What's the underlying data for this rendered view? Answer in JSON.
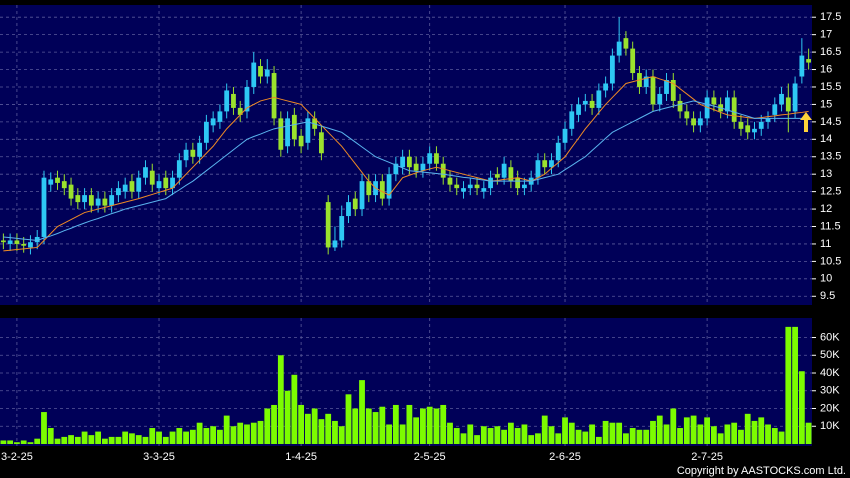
{
  "chart_data": [
    {
      "type": "candlestick",
      "categories": [
        null,
        null,
        "3-2-25",
        null,
        null,
        null,
        null,
        null,
        null,
        null,
        null,
        null,
        null,
        null,
        null,
        null,
        null,
        null,
        null,
        null,
        null,
        null,
        null,
        "3-3-25",
        null,
        null,
        null,
        null,
        null,
        null,
        null,
        null,
        null,
        null,
        null,
        null,
        null,
        null,
        null,
        null,
        null,
        null,
        null,
        null,
        "1-4-25",
        null,
        null,
        null,
        null,
        null,
        null,
        null,
        null,
        null,
        null,
        null,
        null,
        null,
        null,
        null,
        null,
        null,
        null,
        "2-5-25",
        null,
        null,
        null,
        null,
        null,
        null,
        null,
        null,
        null,
        null,
        null,
        null,
        null,
        null,
        null,
        null,
        null,
        null,
        null,
        "2-6-25",
        null,
        null,
        null,
        null,
        null,
        null,
        null,
        null,
        null,
        null,
        null,
        null,
        null,
        null,
        null,
        null,
        null,
        null,
        null,
        null,
        "2-7-25",
        null,
        null,
        null,
        null,
        null,
        null,
        null,
        null,
        null,
        null,
        null,
        null,
        null,
        null,
        null
      ],
      "open": [
        11.1,
        11.0,
        11.1,
        11.0,
        10.9,
        11.05,
        11.2,
        12.7,
        12.9,
        12.8,
        12.7,
        12.4,
        12.2,
        12.4,
        12.1,
        12.3,
        12.1,
        12.4,
        12.5,
        12.8,
        12.5,
        12.9,
        13.1,
        12.6,
        12.9,
        12.6,
        12.9,
        13.4,
        13.7,
        13.5,
        13.9,
        14.4,
        14.5,
        14.8,
        15.3,
        14.9,
        14.8,
        15.5,
        16.1,
        15.8,
        15.9,
        14.6,
        13.8,
        14.7,
        14.1,
        13.9,
        14.6,
        14.2,
        12.2,
        10.9,
        11.1,
        11.8,
        12.3,
        12.0,
        12.8,
        12.4,
        12.8,
        12.3,
        13.0,
        13.2,
        13.5,
        13.3,
        13.1,
        13.3,
        13.6,
        13.3,
        12.9,
        12.7,
        12.5,
        12.6,
        12.7,
        12.5,
        12.6,
        13.0,
        12.9,
        13.2,
        12.9,
        12.6,
        12.7,
        12.9,
        13.4,
        13.2,
        13.4,
        13.9,
        14.3,
        14.7,
        15.0,
        15.1,
        14.9,
        15.4,
        15.6,
        16.4,
        16.9,
        16.6,
        15.9,
        15.5,
        15.8,
        15.0,
        15.3,
        15.7,
        15.1,
        14.8,
        14.6,
        14.4,
        14.6,
        15.2,
        15.0,
        14.8,
        15.2,
        14.5,
        14.4,
        14.2,
        14.3,
        14.5,
        14.7,
        15.0,
        15.2,
        14.8,
        15.8,
        16.3
      ],
      "high": [
        11.3,
        11.3,
        11.3,
        11.2,
        11.25,
        11.4,
        13.1,
        13.05,
        13.1,
        13.0,
        12.9,
        12.6,
        12.6,
        12.6,
        12.5,
        12.5,
        12.6,
        12.8,
        12.9,
        13.0,
        13.1,
        13.4,
        13.3,
        13.0,
        13.1,
        13.1,
        13.6,
        13.9,
        13.9,
        14.1,
        14.7,
        14.8,
        15.0,
        15.6,
        15.5,
        15.1,
        15.7,
        16.5,
        16.3,
        16.3,
        16.1,
        14.8,
        14.8,
        14.9,
        14.3,
        14.8,
        14.8,
        14.4,
        12.4,
        11.5,
        12.1,
        12.4,
        12.5,
        13.0,
        13.0,
        13.0,
        13.0,
        13.2,
        13.5,
        13.7,
        13.7,
        13.5,
        13.5,
        13.8,
        13.8,
        13.5,
        13.1,
        12.9,
        12.8,
        12.9,
        12.9,
        12.8,
        13.1,
        13.2,
        13.5,
        13.4,
        13.1,
        12.9,
        13.1,
        13.6,
        13.6,
        13.6,
        14.1,
        14.5,
        15.0,
        15.2,
        15.3,
        15.3,
        15.6,
        15.8,
        16.6,
        17.5,
        17.1,
        16.8,
        16.1,
        16.0,
        16.0,
        15.5,
        15.9,
        15.9,
        15.3,
        15.0,
        14.8,
        14.8,
        15.4,
        15.4,
        15.2,
        15.4,
        15.4,
        14.7,
        14.6,
        14.5,
        14.7,
        14.8,
        15.2,
        15.5,
        15.6,
        15.8,
        16.9,
        16.6
      ],
      "low": [
        10.85,
        10.8,
        10.8,
        10.75,
        10.7,
        10.85,
        11.0,
        12.5,
        12.55,
        12.4,
        12.1,
        12.0,
        12.0,
        11.9,
        11.9,
        11.9,
        11.9,
        12.2,
        12.3,
        12.3,
        12.3,
        12.7,
        12.5,
        12.4,
        12.4,
        12.4,
        12.7,
        13.2,
        13.3,
        13.3,
        13.7,
        14.2,
        14.3,
        14.6,
        14.7,
        14.5,
        14.6,
        15.3,
        15.6,
        15.6,
        14.4,
        13.5,
        13.6,
        13.8,
        13.6,
        13.7,
        14.1,
        13.4,
        10.7,
        10.8,
        10.9,
        11.6,
        11.8,
        11.8,
        12.2,
        12.2,
        12.1,
        12.1,
        12.8,
        13.0,
        13.0,
        12.9,
        12.9,
        13.1,
        13.1,
        12.7,
        12.5,
        12.4,
        12.3,
        12.4,
        12.4,
        12.3,
        12.4,
        12.7,
        12.7,
        12.6,
        12.4,
        12.4,
        12.5,
        12.7,
        13.0,
        13.0,
        13.2,
        13.7,
        14.1,
        14.5,
        14.8,
        14.7,
        14.7,
        15.2,
        15.4,
        16.2,
        16.4,
        15.7,
        15.3,
        15.3,
        14.8,
        14.8,
        15.1,
        14.9,
        14.6,
        14.4,
        14.2,
        14.2,
        14.4,
        14.8,
        14.6,
        14.6,
        14.3,
        14.1,
        14.0,
        14.0,
        14.1,
        14.3,
        14.5,
        14.8,
        14.2,
        14.6,
        15.6,
        16.0
      ],
      "close": [
        11.05,
        11.1,
        11.0,
        10.95,
        11.05,
        11.2,
        12.9,
        12.85,
        12.75,
        12.6,
        12.3,
        12.2,
        12.4,
        12.1,
        12.3,
        12.1,
        12.4,
        12.6,
        12.7,
        12.5,
        12.9,
        13.2,
        12.7,
        12.8,
        12.6,
        12.9,
        13.4,
        13.7,
        13.5,
        13.9,
        14.5,
        14.6,
        14.8,
        15.4,
        14.9,
        14.7,
        15.5,
        16.2,
        15.8,
        16.0,
        14.6,
        13.7,
        14.6,
        14.0,
        13.8,
        14.6,
        14.3,
        13.6,
        10.9,
        11.1,
        11.8,
        12.2,
        12.0,
        12.8,
        12.4,
        12.8,
        12.3,
        13.0,
        13.3,
        13.5,
        13.2,
        13.1,
        13.3,
        13.6,
        13.3,
        12.9,
        12.7,
        12.6,
        12.6,
        12.7,
        12.6,
        12.6,
        12.9,
        12.9,
        13.3,
        12.8,
        12.6,
        12.7,
        12.9,
        13.4,
        13.2,
        13.4,
        13.9,
        14.3,
        14.8,
        15.0,
        15.1,
        14.9,
        15.4,
        15.6,
        16.4,
        16.8,
        16.6,
        15.9,
        15.5,
        15.8,
        15.0,
        15.3,
        15.7,
        15.1,
        14.8,
        14.6,
        14.4,
        14.6,
        15.2,
        15.0,
        14.8,
        15.2,
        14.5,
        14.3,
        14.2,
        14.3,
        14.5,
        14.6,
        15.0,
        15.3,
        14.8,
        15.6,
        16.4,
        16.2
      ],
      "up_color": "#2ec8f4",
      "down_color": "#9be22d",
      "series": [
        {
          "color": "#f08a24",
          "values": [
            10.8,
            10.82,
            10.84,
            10.86,
            10.88,
            10.9,
            11.1,
            11.3,
            11.5,
            11.6,
            11.7,
            11.8,
            11.9,
            11.95,
            12.0,
            12.05,
            12.1,
            12.15,
            12.2,
            12.25,
            12.3,
            12.36,
            12.42,
            12.48,
            12.54,
            12.6,
            12.8,
            13.0,
            13.2,
            13.4,
            13.6,
            13.8,
            14.05,
            14.3,
            14.5,
            14.7,
            14.9,
            15.0,
            15.1,
            15.15,
            15.2,
            15.15,
            15.1,
            15.05,
            15.0,
            14.8,
            14.6,
            14.4,
            14.2,
            14.0,
            13.8,
            13.55,
            13.3,
            13.05,
            12.8,
            12.6,
            12.5,
            12.4,
            12.65,
            12.9,
            12.97,
            13.04,
            13.1,
            13.15,
            13.2,
            13.15,
            13.1,
            13.05,
            13.0,
            12.95,
            12.9,
            12.85,
            12.8,
            12.82,
            12.85,
            12.87,
            12.9,
            12.85,
            12.8,
            12.9,
            13.0,
            13.17,
            13.33,
            13.5,
            13.77,
            14.03,
            14.3,
            14.53,
            14.77,
            15.0,
            15.2,
            15.4,
            15.6,
            15.65,
            15.7,
            15.75,
            15.8,
            15.73,
            15.67,
            15.6,
            15.45,
            15.3,
            15.15,
            15.0,
            14.92,
            14.85,
            14.77,
            14.7,
            14.67,
            14.65,
            14.62,
            14.6,
            14.62,
            14.65,
            14.67,
            14.7,
            14.72,
            14.75,
            14.77,
            14.8
          ]
        },
        {
          "color": "#5ab4ee",
          "values": [
            11.2,
            11.18,
            11.16,
            11.14,
            11.12,
            11.1,
            11.17,
            11.23,
            11.3,
            11.38,
            11.45,
            11.53,
            11.6,
            11.67,
            11.73,
            11.8,
            11.87,
            11.93,
            12.0,
            12.05,
            12.1,
            12.15,
            12.2,
            12.25,
            12.3,
            12.43,
            12.55,
            12.68,
            12.8,
            12.95,
            13.1,
            13.25,
            13.4,
            13.55,
            13.7,
            13.85,
            14.0,
            14.08,
            14.15,
            14.23,
            14.3,
            14.34,
            14.38,
            14.42,
            14.46,
            14.5,
            14.44,
            14.38,
            14.32,
            14.26,
            14.2,
            14.06,
            13.92,
            13.78,
            13.64,
            13.5,
            13.42,
            13.34,
            13.26,
            13.18,
            13.1,
            13.08,
            13.06,
            13.04,
            13.02,
            13.0,
            12.97,
            12.94,
            12.91,
            12.89,
            12.86,
            12.83,
            12.8,
            12.8,
            12.8,
            12.8,
            12.8,
            12.8,
            12.8,
            12.85,
            12.9,
            12.95,
            13.0,
            13.13,
            13.25,
            13.38,
            13.5,
            13.68,
            13.85,
            14.03,
            14.2,
            14.3,
            14.4,
            14.5,
            14.6,
            14.7,
            14.8,
            14.85,
            14.9,
            14.95,
            15.0,
            15.05,
            15.1,
            15.05,
            15.0,
            14.95,
            14.9,
            14.84,
            14.78,
            14.72,
            14.66,
            14.6,
            14.6,
            14.6,
            14.6,
            14.6,
            14.6,
            14.6,
            14.6,
            14.6
          ]
        }
      ],
      "ylim": [
        9.25,
        17.85
      ],
      "yticks": [
        9.5,
        10,
        10.5,
        11,
        11.5,
        12,
        12.5,
        13,
        13.5,
        14,
        14.5,
        15,
        15.5,
        16,
        16.5,
        17,
        17.5
      ],
      "grid": true
    },
    {
      "type": "bar",
      "color": "#7cfc00",
      "values": [
        2000,
        2000,
        1000,
        2000,
        1000,
        3000,
        18000,
        9000,
        3000,
        4000,
        5000,
        4000,
        7000,
        5000,
        7000,
        3000,
        4000,
        4000,
        7000,
        6000,
        5000,
        4000,
        9000,
        7000,
        4000,
        7000,
        9000,
        7000,
        8000,
        12000,
        9000,
        10000,
        8000,
        16000,
        10000,
        12000,
        11000,
        12000,
        13000,
        20000,
        22000,
        50000,
        30000,
        39000,
        22000,
        17000,
        20000,
        14000,
        17000,
        13000,
        10000,
        28000,
        20000,
        36000,
        20000,
        18000,
        21000,
        11000,
        22000,
        11000,
        22000,
        15000,
        20000,
        21000,
        20000,
        22000,
        12000,
        9000,
        6000,
        11000,
        5000,
        10000,
        9000,
        10000,
        8000,
        12000,
        9000,
        11000,
        5000,
        6000,
        16000,
        10000,
        6000,
        15000,
        12000,
        8000,
        7000,
        11000,
        4000,
        13000,
        12000,
        12000,
        6000,
        9000,
        8000,
        8000,
        13000,
        16000,
        11000,
        20000,
        9000,
        15000,
        16000,
        11000,
        15000,
        10000,
        6000,
        11000,
        12000,
        8000,
        17000,
        13000,
        15000,
        11000,
        9000,
        7000,
        66000,
        66000,
        41000,
        12000
      ],
      "ylim": [
        0,
        71000
      ],
      "yticks": [
        {
          "value": 10000,
          "label": "10K"
        },
        {
          "value": 20000,
          "label": "20K"
        },
        {
          "value": 30000,
          "label": "30K"
        },
        {
          "value": 40000,
          "label": "40K"
        },
        {
          "value": 50000,
          "label": "50K"
        },
        {
          "value": 60000,
          "label": "60K"
        }
      ],
      "grid": true
    }
  ],
  "copyright": "Copyright by AASTOCKS.com Ltd."
}
